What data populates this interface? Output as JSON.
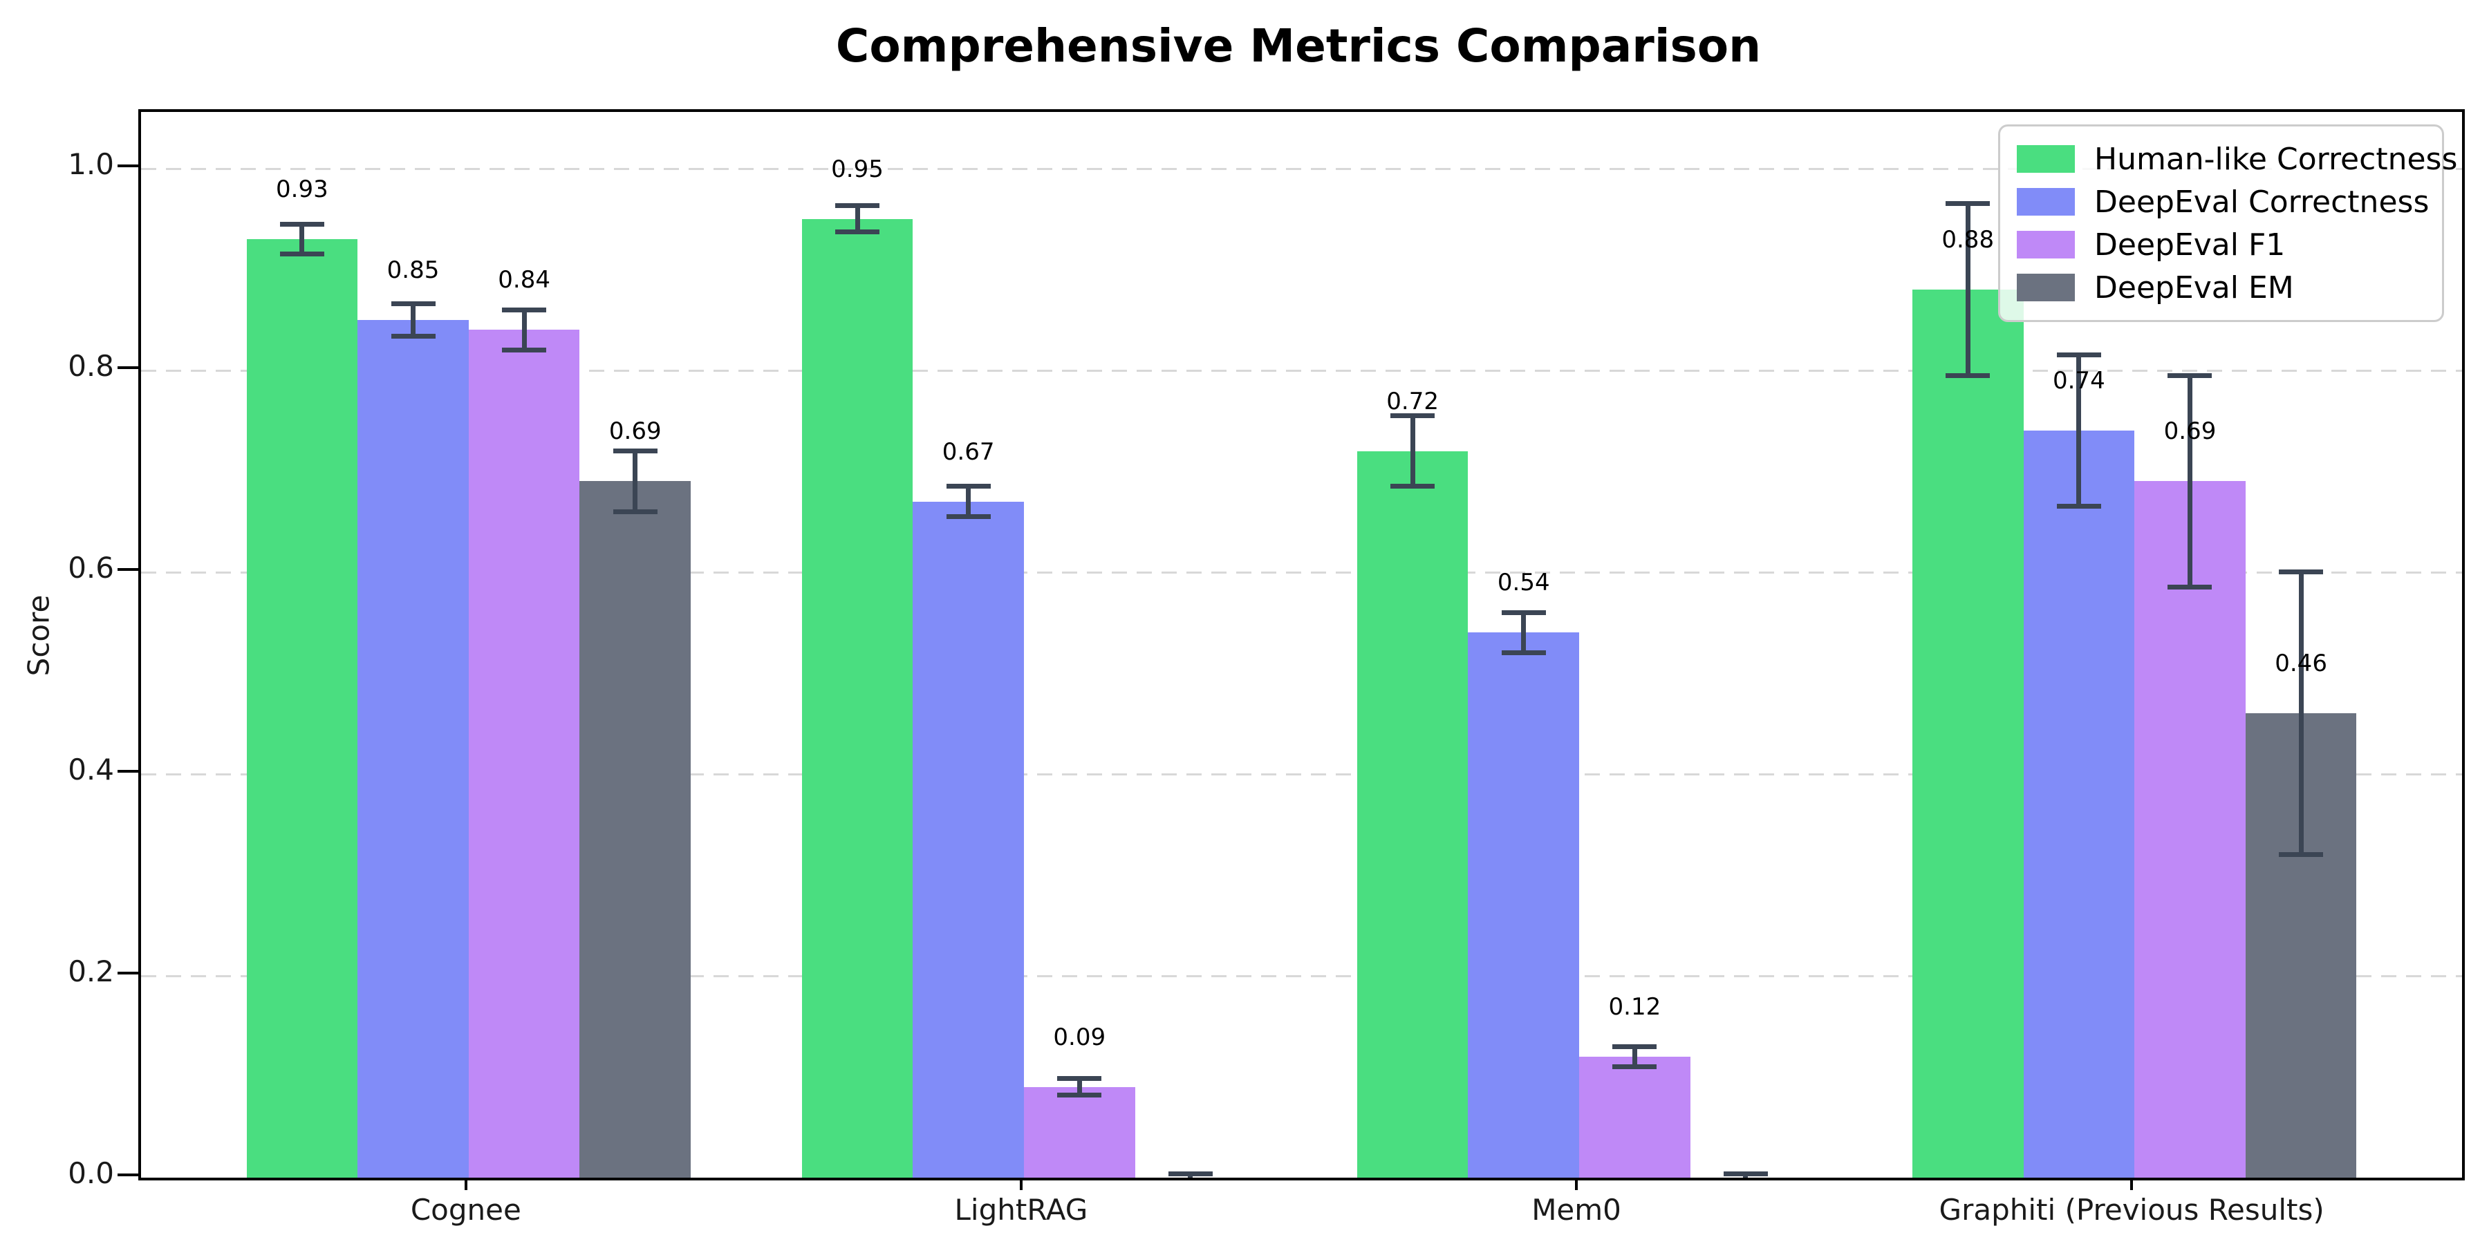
{
  "title": "Comprehensive Metrics Comparison",
  "chart_data": {
    "type": "bar",
    "categories": [
      "Cognee",
      "LightRAG",
      "Mem0",
      "Graphiti (Previous Results)"
    ],
    "series": [
      {
        "name": "Human-like Correctness",
        "color": "#4ade80",
        "values": [
          0.93,
          0.95,
          0.72,
          0.88
        ],
        "errors": [
          0.015,
          0.013,
          0.035,
          0.085
        ]
      },
      {
        "name": "DeepEval Correctness",
        "color": "#818cf8",
        "values": [
          0.85,
          0.67,
          0.54,
          0.74
        ],
        "errors": [
          0.016,
          0.015,
          0.02,
          0.075
        ]
      },
      {
        "name": "DeepEval F1",
        "color": "#bf89f7",
        "values": [
          0.84,
          0.09,
          0.12,
          0.69
        ],
        "errors": [
          0.02,
          0.008,
          0.01,
          0.105
        ]
      },
      {
        "name": "DeepEval EM",
        "color": "#6b7280",
        "values": [
          0.69,
          0.0,
          0.0,
          0.46
        ],
        "errors": [
          0.03,
          0.004,
          0.004,
          0.14
        ]
      }
    ],
    "value_labels": {
      "format": "2dp",
      "shown": [
        "0.93",
        "0.85",
        "0.84",
        "0.69",
        "0.95",
        "0.67",
        "0.09",
        "0.72",
        "0.54",
        "0.12",
        "0.88",
        "0.74",
        "0.69",
        "0.46"
      ],
      "hidden_for_zero": true
    },
    "title": "Comprehensive Metrics Comparison",
    "xlabel": "",
    "ylabel": "Score",
    "yticks": [
      "0.0",
      "0.2",
      "0.4",
      "0.6",
      "0.8",
      "1.0"
    ],
    "ylim": [
      0,
      1.056
    ],
    "grid": "horizontal dashed",
    "legend_position": "upper right",
    "colors": {
      "error_bar": "#3b4554",
      "grid_line": "#d8d8d8",
      "axis_spine": "#000000",
      "background": "#ffffff",
      "text": "#000000"
    }
  }
}
